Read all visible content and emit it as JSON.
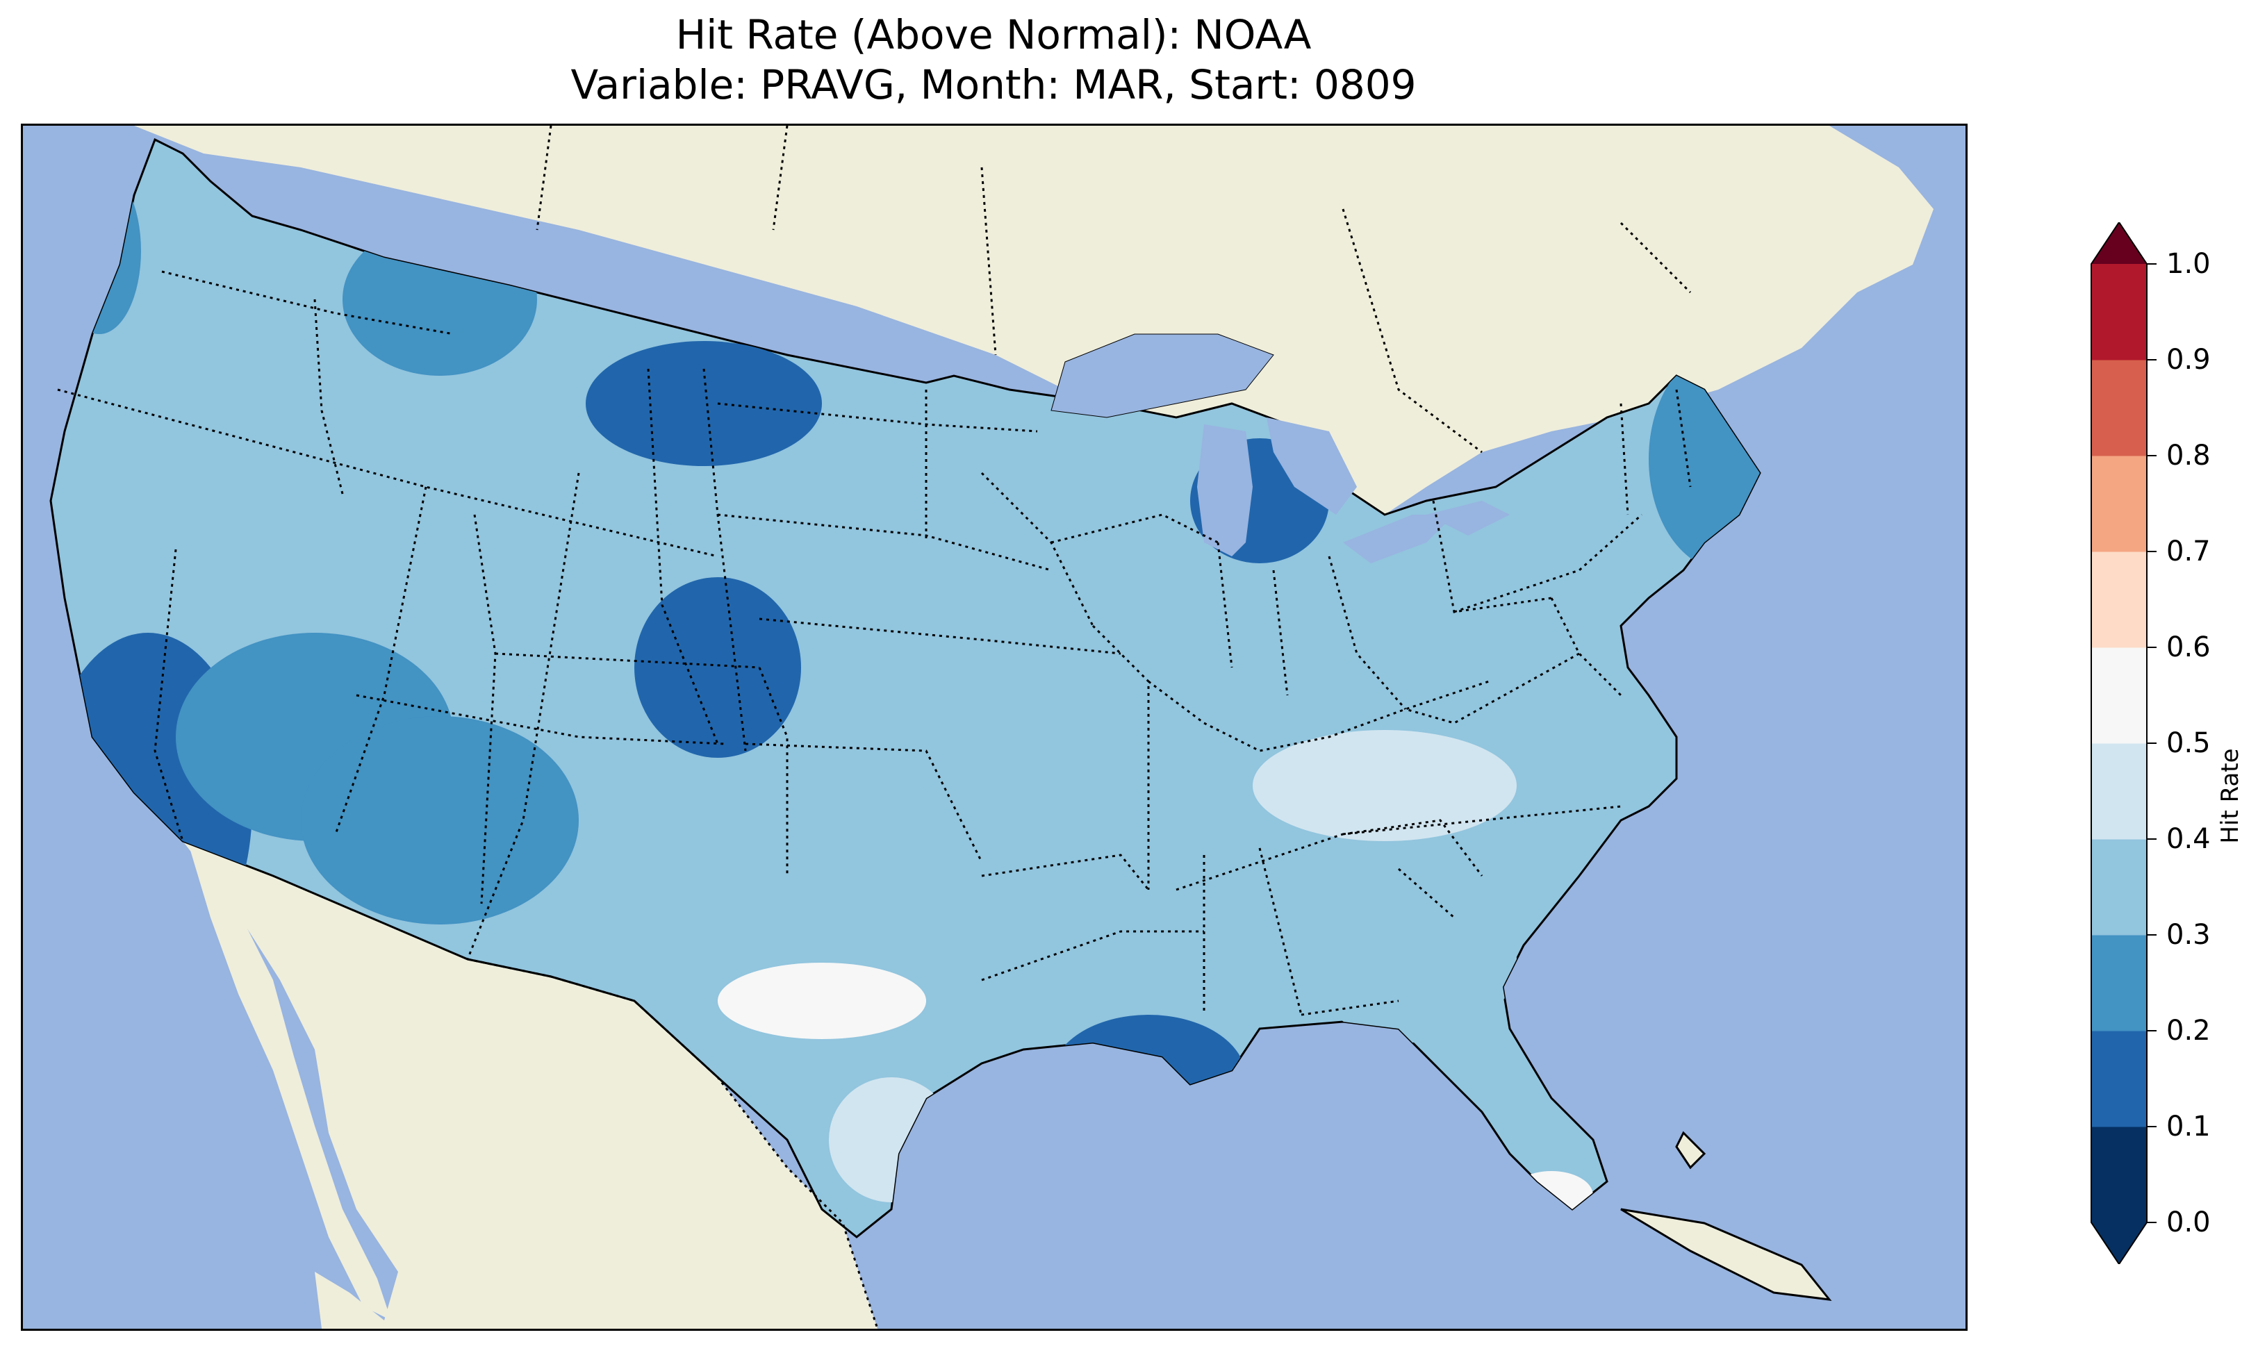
{
  "title": {
    "line1": "Hit Rate (Above Normal): NOAA",
    "line2": "Variable: PRAVG, Month: MAR, Start: 0809"
  },
  "colors": {
    "ocean": "#98b4e0",
    "land": "#efeedb",
    "lakes": "#98b4e0",
    "coast": "#000000",
    "border": "#000000"
  },
  "colorbar": {
    "label": "Hit Rate",
    "ticks": [
      "0.0",
      "0.1",
      "0.2",
      "0.3",
      "0.4",
      "0.5",
      "0.6",
      "0.7",
      "0.8",
      "0.9",
      "1.0"
    ],
    "bins": [
      {
        "range": [
          0.0,
          0.1
        ],
        "color": "#053061"
      },
      {
        "range": [
          0.1,
          0.2
        ],
        "color": "#2166ac"
      },
      {
        "range": [
          0.2,
          0.3
        ],
        "color": "#4393c3"
      },
      {
        "range": [
          0.3,
          0.4
        ],
        "color": "#92c5de"
      },
      {
        "range": [
          0.4,
          0.5
        ],
        "color": "#d1e5f0"
      },
      {
        "range": [
          0.5,
          0.6
        ],
        "color": "#f7f7f7"
      },
      {
        "range": [
          0.6,
          0.7
        ],
        "color": "#fddbc7"
      },
      {
        "range": [
          0.7,
          0.8
        ],
        "color": "#f4a582"
      },
      {
        "range": [
          0.8,
          0.9
        ],
        "color": "#d6604d"
      },
      {
        "range": [
          0.9,
          1.0
        ],
        "color": "#b2182b"
      }
    ],
    "under_color": "#053061",
    "over_color": "#67001f"
  },
  "chart_data": {
    "type": "heatmap",
    "title": "Hit Rate (Above Normal): NOAA\nVariable: PRAVG, Month: MAR, Start: 0809",
    "variable": "PRAVG",
    "month": "MAR",
    "start": "0809",
    "colorbar_label": "Hit Rate",
    "vmin": 0.0,
    "vmax": 1.0,
    "levels": [
      0.0,
      0.1,
      0.2,
      0.3,
      0.4,
      0.5,
      0.6,
      0.7,
      0.8,
      0.9,
      1.0
    ],
    "regions": [
      {
        "name": "Pacific Northwest coast",
        "hit_rate": 0.25
      },
      {
        "name": "Washington / Oregon interior",
        "hit_rate": 0.35
      },
      {
        "name": "Northern Rockies",
        "hit_rate": 0.28
      },
      {
        "name": "North Dakota",
        "hit_rate": 0.18
      },
      {
        "name": "California",
        "hit_rate": 0.15
      },
      {
        "name": "Nevada / Utah",
        "hit_rate": 0.2
      },
      {
        "name": "Colorado / Kansas",
        "hit_rate": 0.18
      },
      {
        "name": "Arizona / New Mexico",
        "hit_rate": 0.28
      },
      {
        "name": "Central Plains",
        "hit_rate": 0.35
      },
      {
        "name": "West Texas",
        "hit_rate": 0.5
      },
      {
        "name": "Texas Gulf coast",
        "hit_rate": 0.4
      },
      {
        "name": "Louisiana / Mississippi",
        "hit_rate": 0.15
      },
      {
        "name": "Michigan lower peninsula",
        "hit_rate": 0.15
      },
      {
        "name": "Ohio Valley / Kentucky",
        "hit_rate": 0.45
      },
      {
        "name": "Carolinas / Georgia",
        "hit_rate": 0.35
      },
      {
        "name": "South Florida",
        "hit_rate": 0.55
      },
      {
        "name": "Northeast / Maine",
        "hit_rate": 0.22
      }
    ]
  }
}
